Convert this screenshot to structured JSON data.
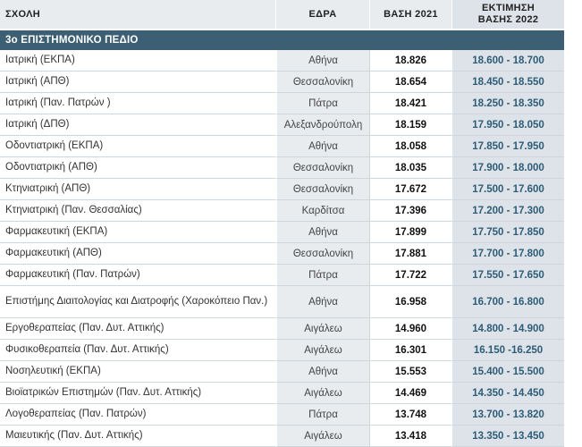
{
  "header": {
    "school": "ΣΧΟΛΗ",
    "seat": "ΕΔΡΑ",
    "base2021": "ΒΑΣΗ 2021",
    "estimate_line1": "ΕΚΤΙΜΗΣΗ",
    "estimate_line2": "ΒΑΣΗΣ 2022"
  },
  "section": "3ο ΕΠΙΣΤΗΜΟΝΙΚΟ ΠΕΔΙΟ",
  "rows": [
    {
      "school": "Ιατρική (ΕΚΠΑ)",
      "seat": "Αθήνα",
      "base2021": "18.826",
      "estimate2022": "18.600 - 18.700"
    },
    {
      "school": "Ιατρική (ΑΠΘ)",
      "seat": "Θεσσαλονίκη",
      "base2021": "18.654",
      "estimate2022": "18.450 - 18.550"
    },
    {
      "school": "Ιατρική (Παν. Πατρών )",
      "seat": "Πάτρα",
      "base2021": "18.421",
      "estimate2022": "18.250 - 18.350"
    },
    {
      "school": "Ιατρική (ΔΠΘ)",
      "seat": "Αλεξανδρούπολη",
      "base2021": "18.159",
      "estimate2022": "17.950 - 18.050"
    },
    {
      "school": "Οδοντιατρική (ΕΚΠΑ)",
      "seat": "Αθήνα",
      "base2021": "18.058",
      "estimate2022": "17.850 - 17.950"
    },
    {
      "school": "Οδοντιατρική (ΑΠΘ)",
      "seat": "Θεσσαλονίκη",
      "base2021": "18.035",
      "estimate2022": "17.900 - 18.000"
    },
    {
      "school": "Κτηνιατρική (ΑΠΘ)",
      "seat": "Θεσσαλονίκη",
      "base2021": "17.672",
      "estimate2022": "17.500 - 17.600"
    },
    {
      "school": "Κτηνιατρική (Παν. Θεσσαλίας)",
      "seat": "Καρδίτσα",
      "base2021": "17.396",
      "estimate2022": "17.200 - 17.300"
    },
    {
      "school": "Φαρμακευτική (ΕΚΠΑ)",
      "seat": "Αθήνα",
      "base2021": "17.899",
      "estimate2022": "17.750 - 17.850"
    },
    {
      "school": "Φαρμακευτική (ΑΠΘ)",
      "seat": "Θεσσαλονίκη",
      "base2021": "17.881",
      "estimate2022": "17.700 - 17.800"
    },
    {
      "school": "Φαρμακευτική (Παν. Πατρών)",
      "seat": "Πάτρα",
      "base2021": "17.722",
      "estimate2022": "17.550 - 17.650"
    },
    {
      "school": "Επιστήμης Διαιτολογίας και Διατροφής (Χαροκόπειο Παν.)",
      "seat": "Αθήνα",
      "base2021": "16.958",
      "estimate2022": "16.700 - 16.800"
    },
    {
      "school": "Εργοθεραπείας (Παν. Δυτ. Αττικής)",
      "seat": "Αιγάλεω",
      "base2021": "14.960",
      "estimate2022": "14.800 - 14.900"
    },
    {
      "school": "Φυσικοθεραπεία (Παν. Δυτ. Αττικής)",
      "seat": "Αιγάλεω",
      "base2021": "16.301",
      "estimate2022": "16.150 -16.250"
    },
    {
      "school": "Νοσηλευτική (ΕΚΠΑ)",
      "seat": "Αθήνα",
      "base2021": "15.553",
      "estimate2022": "15.400 - 15.500"
    },
    {
      "school": "Βιοϊατρικών Επιστημών (Παν. Δυτ. Αττικής)",
      "seat": "Αιγάλεω",
      "base2021": "14.469",
      "estimate2022": "14.350 - 14.450"
    },
    {
      "school": "Λογοθεραπείας (Παν. Πατρών)",
      "seat": "Πάτρα",
      "base2021": "13.748",
      "estimate2022": "13.700 - 13.820"
    },
    {
      "school": "Μαιευτικής (Παν. Δυτ. Αττικής)",
      "seat": "Αιγάλεω",
      "base2021": "13.418",
      "estimate2022": "13.350 - 13.450"
    }
  ]
}
